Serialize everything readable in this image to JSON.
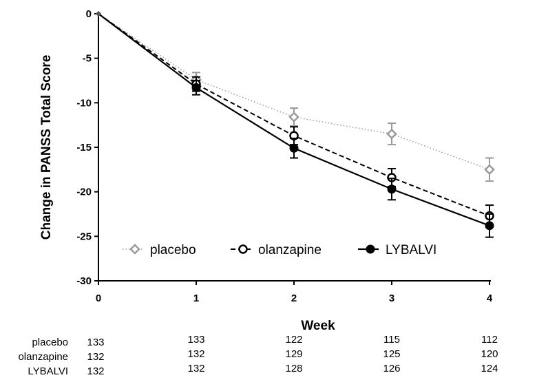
{
  "chart_data": {
    "type": "line",
    "xlabel": "Week",
    "ylabel": "Change in PANSS Total Score",
    "xlim": [
      0,
      4
    ],
    "ylim": [
      -30,
      0
    ],
    "x_ticks": [
      "0",
      "1",
      "2",
      "3",
      "4"
    ],
    "y_ticks": [
      "0",
      "-5",
      "-10",
      "-15",
      "-20",
      "-25",
      "-30"
    ],
    "grid": false,
    "legend_position": "bottom-left",
    "series": [
      {
        "name": "placebo",
        "color": "#999999",
        "line_style": "dotted",
        "marker": "diamond-open",
        "x": [
          0,
          1,
          2,
          3,
          4
        ],
        "y": [
          0,
          -7.4,
          -11.6,
          -13.5,
          -17.5
        ],
        "error": [
          0,
          0.8,
          1.0,
          1.2,
          1.3
        ]
      },
      {
        "name": "olanzapine",
        "color": "#000000",
        "line_style": "dashed",
        "marker": "circle-open",
        "x": [
          0,
          1,
          2,
          3,
          4
        ],
        "y": [
          0,
          -7.9,
          -13.7,
          -18.4,
          -22.7
        ],
        "error": [
          0,
          0.8,
          1.0,
          1.0,
          1.2
        ]
      },
      {
        "name": "LYBALVI",
        "color": "#000000",
        "line_style": "solid",
        "marker": "circle-filled",
        "x": [
          0,
          1,
          2,
          3,
          4
        ],
        "y": [
          0,
          -8.3,
          -15.1,
          -19.7,
          -23.8
        ],
        "error": [
          0,
          0.8,
          1.1,
          1.2,
          1.3
        ]
      }
    ],
    "n_at_risk": {
      "rows": [
        {
          "label": "placebo",
          "values": [
            "133",
            "133",
            "122",
            "115",
            "112"
          ]
        },
        {
          "label": "olanzapine",
          "values": [
            "132",
            "132",
            "129",
            "125",
            "120"
          ]
        },
        {
          "label": "LYBALVI",
          "values": [
            "132",
            "132",
            "128",
            "126",
            "124"
          ]
        }
      ]
    }
  }
}
